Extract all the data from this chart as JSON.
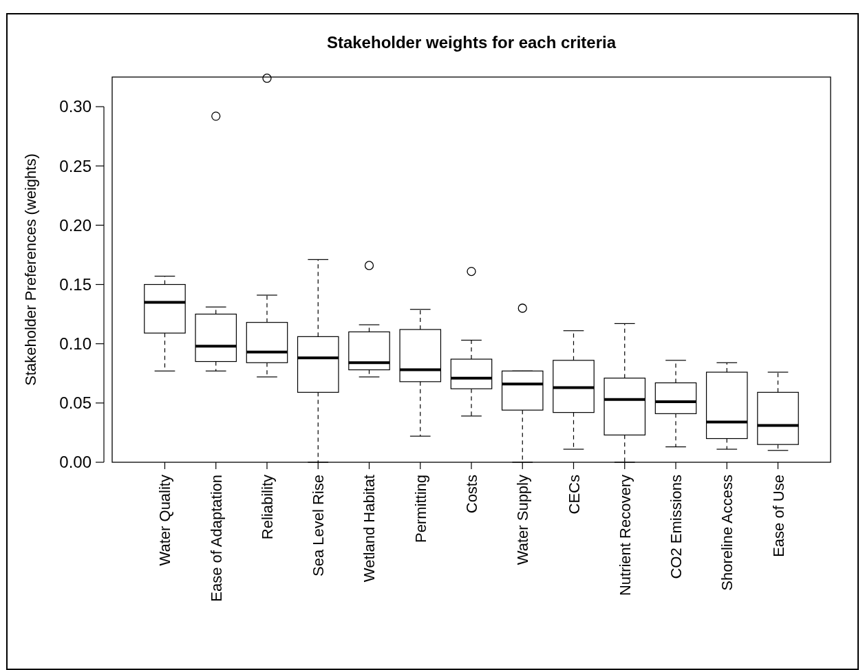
{
  "chart_data": {
    "type": "box",
    "title": "Stakeholder weights for each criteria",
    "ylabel": "Stakeholder Preferences (weights)",
    "categories": [
      "Water Quality",
      "Ease of Adaptation",
      "Reliability",
      "Sea Level Rise",
      "Wetland Habitat",
      "Permitting",
      "Costs",
      "Water Supply",
      "CECs",
      "Nutrient Recovery",
      "CO2 Emissions",
      "Shoreline Access",
      "Ease of Use"
    ],
    "boxes": [
      {
        "low": 0.077,
        "q1": 0.109,
        "median": 0.135,
        "q3": 0.15,
        "high": 0.157
      },
      {
        "low": 0.077,
        "q1": 0.085,
        "median": 0.098,
        "q3": 0.125,
        "high": 0.131,
        "outliers": [
          0.292
        ]
      },
      {
        "low": 0.072,
        "q1": 0.084,
        "median": 0.093,
        "q3": 0.118,
        "high": 0.141,
        "outliers": [
          0.324
        ]
      },
      {
        "low": 0.0,
        "q1": 0.059,
        "median": 0.088,
        "q3": 0.106,
        "high": 0.171
      },
      {
        "low": 0.072,
        "q1": 0.078,
        "median": 0.084,
        "q3": 0.11,
        "high": 0.116,
        "outliers": [
          0.166
        ]
      },
      {
        "low": 0.022,
        "q1": 0.068,
        "median": 0.078,
        "q3": 0.112,
        "high": 0.129
      },
      {
        "low": 0.039,
        "q1": 0.062,
        "median": 0.071,
        "q3": 0.087,
        "high": 0.103,
        "outliers": [
          0.161
        ]
      },
      {
        "low": 0.0,
        "q1": 0.044,
        "median": 0.066,
        "q3": 0.077,
        "high": 0.077,
        "outliers": [
          0.13
        ]
      },
      {
        "low": 0.011,
        "q1": 0.042,
        "median": 0.063,
        "q3": 0.086,
        "high": 0.111
      },
      {
        "low": 0.0,
        "q1": 0.023,
        "median": 0.053,
        "q3": 0.071,
        "high": 0.117
      },
      {
        "low": 0.013,
        "q1": 0.041,
        "median": 0.051,
        "q3": 0.067,
        "high": 0.086
      },
      {
        "low": 0.011,
        "q1": 0.02,
        "median": 0.034,
        "q3": 0.076,
        "high": 0.084
      },
      {
        "low": 0.01,
        "q1": 0.015,
        "median": 0.031,
        "q3": 0.059,
        "high": 0.076
      }
    ],
    "ylim": [
      0,
      0.325
    ],
    "yticks": [
      {
        "value": 0,
        "label": "0.00"
      },
      {
        "value": 0.05,
        "label": "0.05"
      },
      {
        "value": 0.1,
        "label": "0.10"
      },
      {
        "value": 0.15,
        "label": "0.15"
      },
      {
        "value": 0.2,
        "label": "0.20"
      },
      {
        "value": 0.25,
        "label": "0.25"
      },
      {
        "value": 0.3,
        "label": "0.30"
      }
    ],
    "grid": false,
    "marker": "circle"
  }
}
